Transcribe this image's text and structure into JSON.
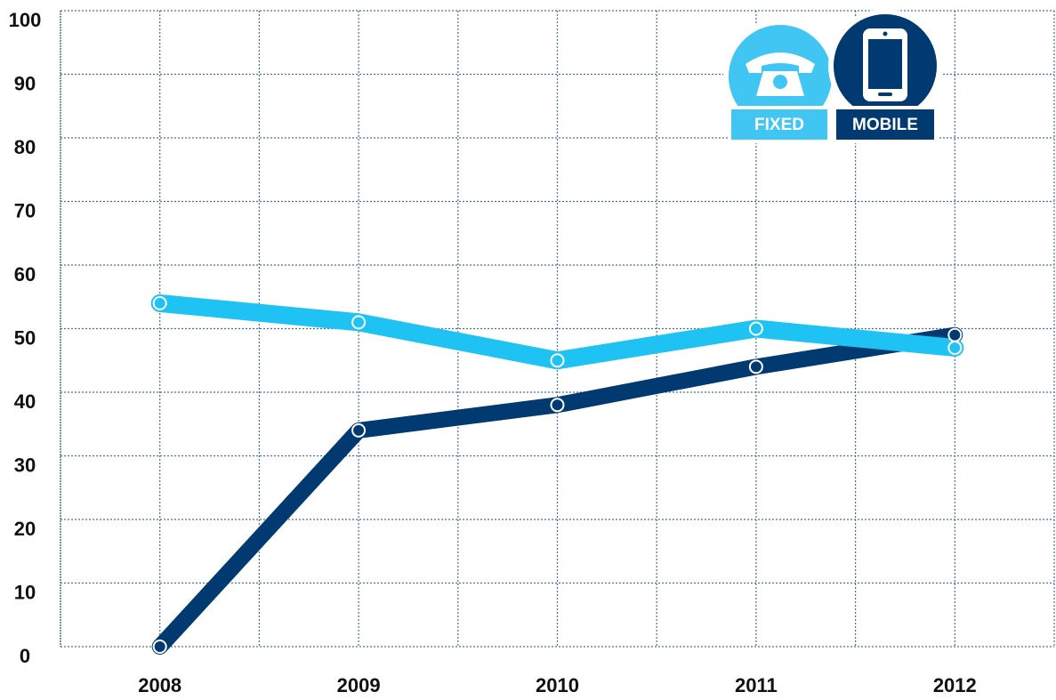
{
  "chart_data": {
    "type": "line",
    "x": [
      2008,
      2009,
      2010,
      2011,
      2012
    ],
    "xlim": [
      2007.5,
      2012.5
    ],
    "xticks": [
      2008,
      2009,
      2010,
      2011,
      2012
    ],
    "ylim": [
      0,
      100
    ],
    "yticks": [
      0,
      10,
      20,
      30,
      40,
      50,
      60,
      70,
      80,
      90,
      100
    ],
    "grid": true,
    "legend": "top-right",
    "series": [
      {
        "name": "MOBILE",
        "color": "#003a70",
        "values": [
          0,
          34,
          38,
          44,
          49
        ]
      },
      {
        "name": "FIXED",
        "color": "#1ec3f3",
        "values": [
          54,
          51,
          45,
          50,
          47
        ]
      }
    ]
  }
}
